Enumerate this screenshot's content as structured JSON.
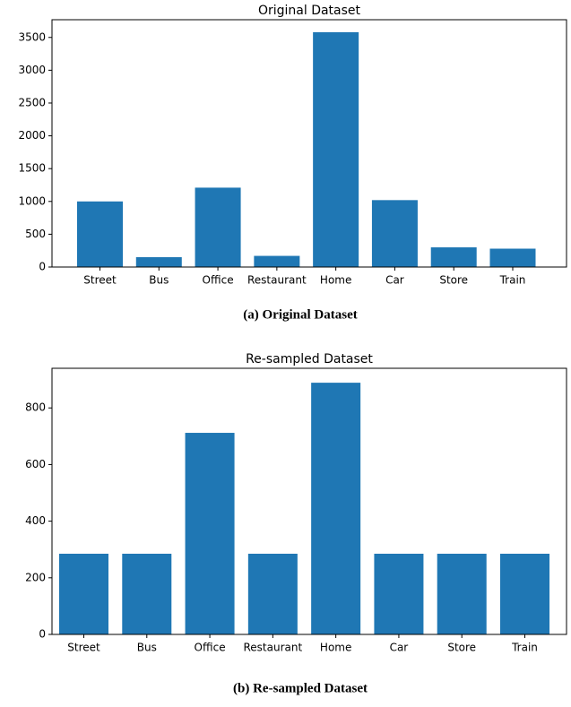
{
  "chart_data": [
    {
      "type": "bar",
      "title": "Original Dataset",
      "caption": "(a) Original Dataset",
      "categories": [
        "Street",
        "Bus",
        "Office",
        "Restaurant",
        "Home",
        "Car",
        "Store",
        "Train"
      ],
      "values": [
        1000,
        150,
        1210,
        170,
        3580,
        1020,
        300,
        280
      ],
      "color": "#1f77b4",
      "ylim": [
        0,
        3770
      ],
      "yticks": [
        0,
        500,
        1000,
        1500,
        2000,
        2500,
        3000,
        3500
      ]
    },
    {
      "type": "bar",
      "title": "Re-sampled Dataset",
      "caption": "(b) Re-sampled Dataset",
      "categories": [
        "Street",
        "Bus",
        "Office",
        "Restaurant",
        "Home",
        "Car",
        "Store",
        "Train"
      ],
      "values": [
        285,
        285,
        712,
        285,
        889,
        285,
        285,
        285
      ],
      "color": "#1f77b4",
      "ylim": [
        0,
        940
      ],
      "yticks": [
        0,
        200,
        400,
        600,
        800
      ]
    }
  ]
}
